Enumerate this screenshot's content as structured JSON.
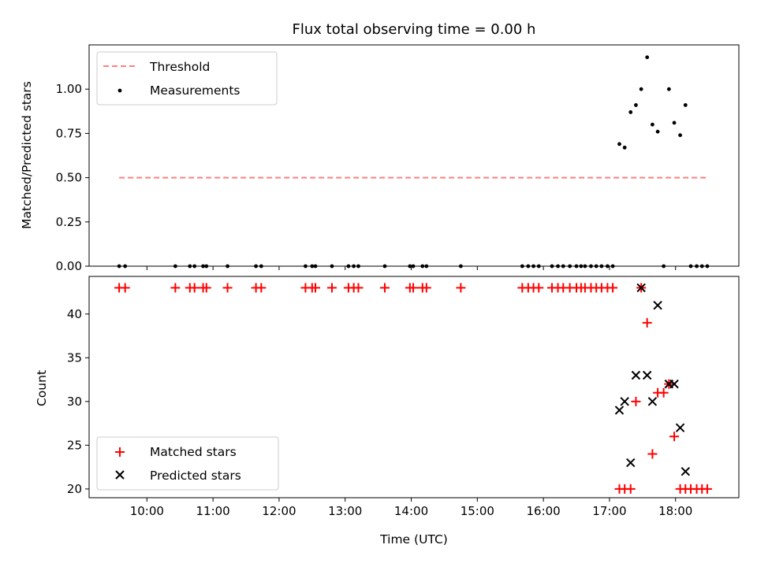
{
  "chart_data": [
    {
      "type": "scatter",
      "title": "Flux total observing time = 0.00 h",
      "xlabel": "",
      "ylabel": "Matched/Predicted stars",
      "xlim": [
        9.125,
        18.958
      ],
      "ylim": [
        0,
        1.25
      ],
      "yticks": [
        0.0,
        0.25,
        0.5,
        0.75,
        1.0
      ],
      "ytick_labels": [
        "0.00",
        "0.25",
        "0.50",
        "0.75",
        "1.00"
      ],
      "grid": false,
      "legend": "top-left",
      "series": [
        {
          "name": "Threshold",
          "kind": "dashed-line",
          "color": "#ff8080",
          "x": [
            9.58,
            18.5
          ],
          "y": [
            0.5,
            0.5
          ]
        },
        {
          "name": "Measurements",
          "kind": "dot",
          "color": "#000000",
          "x": [
            9.58,
            9.67,
            10.43,
            10.65,
            10.72,
            10.85,
            10.9,
            11.22,
            11.65,
            11.73,
            12.4,
            12.5,
            12.55,
            12.8,
            13.05,
            13.13,
            13.2,
            13.6,
            13.98,
            14.03,
            14.17,
            14.23,
            14.75,
            15.68,
            15.77,
            15.85,
            15.93,
            16.13,
            16.22,
            16.3,
            16.4,
            16.5,
            16.57,
            16.63,
            16.72,
            16.8,
            16.88,
            16.97,
            17.05,
            17.15,
            17.23,
            17.32,
            17.4,
            17.48,
            17.57,
            17.65,
            17.73,
            17.82,
            17.9,
            17.98,
            18.07,
            18.15,
            18.23,
            18.32,
            18.4,
            18.48
          ],
          "y": [
            0,
            0,
            0,
            0,
            0,
            0,
            0,
            0,
            0,
            0,
            0,
            0,
            0,
            0,
            0,
            0,
            0,
            0,
            0,
            0,
            0,
            0,
            0,
            0,
            0,
            0,
            0,
            0,
            0,
            0,
            0,
            0,
            0,
            0,
            0,
            0,
            0,
            0,
            0,
            0.69,
            0.67,
            0.87,
            0.91,
            1.0,
            1.18,
            0.8,
            0.76,
            0,
            1.0,
            0.81,
            0.74,
            0.91,
            0,
            0,
            0,
            0
          ]
        }
      ]
    },
    {
      "type": "scatter",
      "title": "",
      "xlabel": "Time (UTC)",
      "ylabel": "Count",
      "xlim": [
        9.125,
        18.958
      ],
      "ylim": [
        19,
        44.3
      ],
      "xticks": [
        10,
        11,
        12,
        13,
        14,
        15,
        16,
        17,
        18
      ],
      "xtick_labels": [
        "10:00",
        "11:00",
        "12:00",
        "13:00",
        "14:00",
        "15:00",
        "16:00",
        "17:00",
        "18:00"
      ],
      "yticks": [
        20,
        25,
        30,
        35,
        40
      ],
      "ytick_labels": [
        "20",
        "25",
        "30",
        "35",
        "40"
      ],
      "grid": false,
      "legend": "bottom-left",
      "series": [
        {
          "name": "Matched stars",
          "marker": "+",
          "color": "#ff0000",
          "x": [
            9.58,
            9.67,
            10.43,
            10.65,
            10.72,
            10.85,
            10.9,
            11.22,
            11.65,
            11.73,
            12.4,
            12.5,
            12.55,
            12.8,
            13.05,
            13.13,
            13.2,
            13.6,
            13.98,
            14.03,
            14.17,
            14.23,
            14.75,
            15.68,
            15.77,
            15.85,
            15.93,
            16.13,
            16.22,
            16.3,
            16.4,
            16.5,
            16.57,
            16.63,
            16.72,
            16.8,
            16.88,
            16.97,
            17.05,
            17.15,
            17.23,
            17.32,
            17.4,
            17.48,
            17.57,
            17.65,
            17.73,
            17.82,
            17.9,
            17.98,
            18.07,
            18.15,
            18.23,
            18.32,
            18.4,
            18.48
          ],
          "y": [
            43,
            43,
            43,
            43,
            43,
            43,
            43,
            43,
            43,
            43,
            43,
            43,
            43,
            43,
            43,
            43,
            43,
            43,
            43,
            43,
            43,
            43,
            43,
            43,
            43,
            43,
            43,
            43,
            43,
            43,
            43,
            43,
            43,
            43,
            43,
            43,
            43,
            43,
            43,
            20,
            20,
            20,
            30,
            43,
            39,
            24,
            31,
            31,
            32,
            26,
            20,
            20,
            20,
            20,
            20,
            20
          ]
        },
        {
          "name": "Predicted stars",
          "marker": "x",
          "color": "#000000",
          "x": [
            17.15,
            17.23,
            17.32,
            17.4,
            17.48,
            17.57,
            17.65,
            17.73,
            17.9,
            17.98,
            18.07,
            18.15
          ],
          "y": [
            29,
            30,
            23,
            33,
            43,
            33,
            30,
            41,
            32,
            32,
            27,
            22
          ]
        }
      ]
    }
  ]
}
